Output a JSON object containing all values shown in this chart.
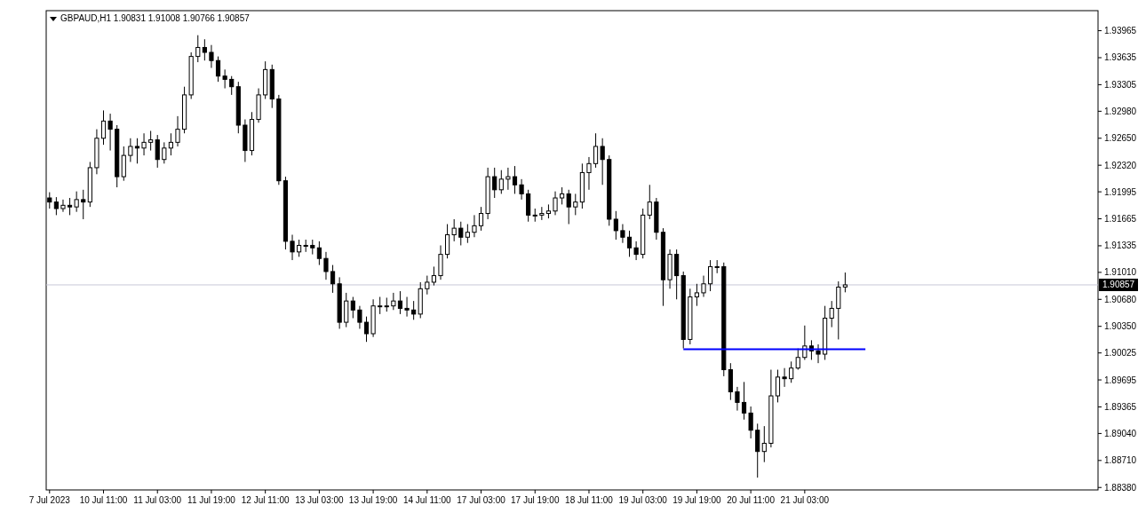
{
  "chart_data": {
    "type": "candlestick",
    "title": "GBPAUD,H1  1.90831 1.91008 1.90766 1.90857",
    "categories": [
      "7 Jul 2023",
      null,
      null,
      null,
      null,
      null,
      null,
      null,
      "10 Jul 11:00",
      null,
      null,
      null,
      null,
      null,
      null,
      null,
      "11 Jul 03:00",
      null,
      null,
      null,
      null,
      null,
      null,
      null,
      "11 Jul 19:00",
      null,
      null,
      null,
      null,
      null,
      null,
      null,
      "12 Jul 11:00",
      null,
      null,
      null,
      null,
      null,
      null,
      null,
      "13 Jul 03:00",
      null,
      null,
      null,
      null,
      null,
      null,
      null,
      "13 Jul 19:00",
      null,
      null,
      null,
      null,
      null,
      null,
      null,
      "14 Jul 11:00",
      null,
      null,
      null,
      null,
      null,
      null,
      null,
      "17 Jul 03:00",
      null,
      null,
      null,
      null,
      null,
      null,
      null,
      "17 Jul 19:00",
      null,
      null,
      null,
      null,
      null,
      null,
      null,
      "18 Jul 11:00",
      null,
      null,
      null,
      null,
      null,
      null,
      null,
      "19 Jul 03:00",
      null,
      null,
      null,
      null,
      null,
      null,
      null,
      "19 Jul 19:00",
      null,
      null,
      null,
      null,
      null,
      null,
      null,
      "20 Jul 11:00",
      null,
      null,
      null,
      null,
      null,
      null,
      null,
      "21 Jul 03:00",
      null,
      null,
      null,
      null,
      null,
      null,
      null,
      null,
      null,
      null,
      null,
      null,
      null,
      null,
      null,
      null,
      null,
      null,
      null,
      null,
      null,
      null,
      null,
      null,
      null,
      null,
      null,
      null,
      null,
      null,
      null,
      null,
      null,
      null,
      null,
      null,
      null,
      null,
      null,
      null,
      null,
      null,
      null
    ],
    "ohlc": [
      [
        1.9192,
        1.9199,
        1.9179,
        1.9187
      ],
      [
        1.9187,
        1.9193,
        1.9171,
        1.9179
      ],
      [
        1.9179,
        1.919,
        1.9175,
        1.9183
      ],
      [
        1.9183,
        1.9192,
        1.9171,
        1.9181
      ],
      [
        1.9181,
        1.92,
        1.9175,
        1.919
      ],
      [
        1.919,
        1.9202,
        1.9166,
        1.9187
      ],
      [
        1.9187,
        1.9236,
        1.9181,
        1.9229
      ],
      [
        1.9229,
        1.9276,
        1.9221,
        1.9265
      ],
      [
        1.9265,
        1.9299,
        1.9257,
        1.9286
      ],
      [
        1.9286,
        1.9295,
        1.925,
        1.9276
      ],
      [
        1.9276,
        1.9281,
        1.9205,
        1.9218
      ],
      [
        1.9218,
        1.9255,
        1.9213,
        1.9244
      ],
      [
        1.9244,
        1.9265,
        1.9236,
        1.9255
      ],
      [
        1.9255,
        1.9265,
        1.9234,
        1.9253
      ],
      [
        1.9253,
        1.9271,
        1.9244,
        1.926
      ],
      [
        1.926,
        1.9274,
        1.925,
        1.9263
      ],
      [
        1.9263,
        1.9269,
        1.9229,
        1.9239
      ],
      [
        1.9239,
        1.926,
        1.9234,
        1.9253
      ],
      [
        1.9253,
        1.9271,
        1.9244,
        1.926
      ],
      [
        1.926,
        1.9292,
        1.9255,
        1.9276
      ],
      [
        1.9276,
        1.9328,
        1.9271,
        1.9318
      ],
      [
        1.9318,
        1.937,
        1.9313,
        1.9365
      ],
      [
        1.9365,
        1.9391,
        1.9358,
        1.9376
      ],
      [
        1.9376,
        1.9386,
        1.936,
        1.937
      ],
      [
        1.937,
        1.9379,
        1.9351,
        1.936
      ],
      [
        1.936,
        1.9365,
        1.9334,
        1.9341
      ],
      [
        1.9341,
        1.9349,
        1.9326,
        1.9337
      ],
      [
        1.9337,
        1.9341,
        1.9318,
        1.9328
      ],
      [
        1.9328,
        1.9334,
        1.9271,
        1.9281
      ],
      [
        1.9281,
        1.9288,
        1.9236,
        1.925
      ],
      [
        1.925,
        1.9297,
        1.9244,
        1.9288
      ],
      [
        1.9288,
        1.9326,
        1.9284,
        1.9318
      ],
      [
        1.9318,
        1.9359,
        1.9313,
        1.9349
      ],
      [
        1.9349,
        1.9355,
        1.9302,
        1.9313
      ],
      [
        1.9313,
        1.9318,
        1.9208,
        1.9213
      ],
      [
        1.9213,
        1.9218,
        1.9129,
        1.9139
      ],
      [
        1.9139,
        1.9147,
        1.9116,
        1.9126
      ],
      [
        1.9126,
        1.9141,
        1.912,
        1.9134
      ],
      [
        1.9134,
        1.9141,
        1.9126,
        1.9134
      ],
      [
        1.9134,
        1.9141,
        1.9123,
        1.9131
      ],
      [
        1.9131,
        1.9139,
        1.911,
        1.9118
      ],
      [
        1.9118,
        1.9126,
        1.9092,
        1.9102
      ],
      [
        1.9102,
        1.911,
        1.9076,
        1.9087
      ],
      [
        1.9087,
        1.9095,
        1.9032,
        1.904
      ],
      [
        1.904,
        1.9076,
        1.9034,
        1.9066
      ],
      [
        1.9066,
        1.9071,
        1.9045,
        1.9055
      ],
      [
        1.9055,
        1.906,
        1.9032,
        1.904
      ],
      [
        1.904,
        1.9047,
        1.9016,
        1.9026
      ],
      [
        1.9026,
        1.9068,
        1.9022,
        1.906
      ],
      [
        1.906,
        1.9071,
        1.905,
        1.906
      ],
      [
        1.906,
        1.907,
        1.9053,
        1.906
      ],
      [
        1.906,
        1.9076,
        1.9055,
        1.9066
      ],
      [
        1.9066,
        1.9078,
        1.905,
        1.9057
      ],
      [
        1.9057,
        1.9071,
        1.9047,
        1.9055
      ],
      [
        1.9055,
        1.9066,
        1.9043,
        1.905
      ],
      [
        1.905,
        1.9089,
        1.9045,
        1.9081
      ],
      [
        1.9081,
        1.9097,
        1.9074,
        1.9089
      ],
      [
        1.9089,
        1.9108,
        1.9085,
        1.9097
      ],
      [
        1.9097,
        1.9134,
        1.9092,
        1.9123
      ],
      [
        1.9123,
        1.916,
        1.9118,
        1.9147
      ],
      [
        1.9147,
        1.9166,
        1.9139,
        1.9155
      ],
      [
        1.9155,
        1.9163,
        1.9134,
        1.9144
      ],
      [
        1.9144,
        1.916,
        1.9137,
        1.915
      ],
      [
        1.915,
        1.9171,
        1.9144,
        1.9158
      ],
      [
        1.9158,
        1.9181,
        1.9152,
        1.9173
      ],
      [
        1.9173,
        1.9229,
        1.9166,
        1.9218
      ],
      [
        1.9218,
        1.9229,
        1.9192,
        1.9202
      ],
      [
        1.9202,
        1.9226,
        1.9197,
        1.9215
      ],
      [
        1.9215,
        1.9229,
        1.9202,
        1.9218
      ],
      [
        1.9218,
        1.9231,
        1.9197,
        1.9208
      ],
      [
        1.9208,
        1.9215,
        1.919,
        1.9197
      ],
      [
        1.9197,
        1.9202,
        1.9163,
        1.9171
      ],
      [
        1.9171,
        1.9179,
        1.9163,
        1.9171
      ],
      [
        1.9171,
        1.9181,
        1.9165,
        1.9173
      ],
      [
        1.9173,
        1.9184,
        1.9167,
        1.9176
      ],
      [
        1.9176,
        1.92,
        1.9171,
        1.9192
      ],
      [
        1.9192,
        1.9205,
        1.9184,
        1.9197
      ],
      [
        1.9197,
        1.9202,
        1.916,
        1.9181
      ],
      [
        1.9181,
        1.9197,
        1.9171,
        1.9187
      ],
      [
        1.9187,
        1.9234,
        1.9179,
        1.9223
      ],
      [
        1.9223,
        1.9242,
        1.9202,
        1.9234
      ],
      [
        1.9234,
        1.9271,
        1.9229,
        1.9255
      ],
      [
        1.9255,
        1.9265,
        1.9208,
        1.9239
      ],
      [
        1.9239,
        1.9244,
        1.9158,
        1.9166
      ],
      [
        1.9166,
        1.9176,
        1.9141,
        1.9152
      ],
      [
        1.9152,
        1.916,
        1.9137,
        1.9144
      ],
      [
        1.9144,
        1.9152,
        1.912,
        1.9131
      ],
      [
        1.9131,
        1.9139,
        1.9116,
        1.9123
      ],
      [
        1.9123,
        1.9179,
        1.9118,
        1.9171
      ],
      [
        1.9171,
        1.9208,
        1.9166,
        1.9187
      ],
      [
        1.9187,
        1.9192,
        1.9141,
        1.915
      ],
      [
        1.915,
        1.9155,
        1.906,
        1.9092
      ],
      [
        1.9092,
        1.9129,
        1.9081,
        1.9123
      ],
      [
        1.9123,
        1.9129,
        1.9068,
        1.9097
      ],
      [
        1.9097,
        1.9102,
        1.9008,
        1.9019
      ],
      [
        1.9019,
        1.9081,
        1.9013,
        1.9071
      ],
      [
        1.9071,
        1.9087,
        1.906,
        1.9076
      ],
      [
        1.9076,
        1.9097,
        1.9071,
        1.9087
      ],
      [
        1.9087,
        1.9116,
        1.9078,
        1.9108
      ],
      [
        1.9108,
        1.9116,
        1.91,
        1.9108
      ],
      [
        1.9108,
        1.9113,
        1.8974,
        1.8982
      ],
      [
        1.8982,
        1.899,
        1.8945,
        1.8955
      ],
      [
        1.8955,
        1.8961,
        1.8932,
        1.8942
      ],
      [
        1.8942,
        1.8967,
        1.8921,
        1.8929
      ],
      [
        1.8929,
        1.8937,
        1.8898,
        1.8908
      ],
      [
        1.8908,
        1.8916,
        1.885,
        1.8882
      ],
      [
        1.8882,
        1.8913,
        1.8869,
        1.8892
      ],
      [
        1.8892,
        1.8982,
        1.8887,
        1.895
      ],
      [
        1.895,
        1.8982,
        1.8942,
        1.8973
      ],
      [
        1.8973,
        1.8984,
        1.8961,
        1.8971
      ],
      [
        1.8971,
        1.8992,
        1.8966,
        1.8984
      ],
      [
        1.8984,
        1.9008,
        1.8982,
        1.8997
      ],
      [
        1.8997,
        1.9036,
        1.8994,
        1.9011
      ],
      [
        1.9011,
        1.9018,
        1.8994,
        1.9005
      ],
      [
        1.9005,
        1.9013,
        1.899,
        1.9001
      ],
      [
        1.9001,
        1.906,
        1.8994,
        1.9045
      ],
      [
        1.9045,
        1.9066,
        1.9034,
        1.9057
      ],
      [
        1.9057,
        1.909,
        1.9019,
        1.9083
      ],
      [
        1.90831,
        1.91008,
        1.90766,
        1.90857
      ],
      null,
      null,
      null,
      null,
      null,
      null,
      null,
      null,
      null,
      null,
      null,
      null,
      null,
      null,
      null,
      null,
      null,
      null,
      null,
      null,
      null,
      null,
      null,
      null,
      null,
      null,
      null,
      null,
      null,
      null,
      null,
      null,
      null,
      null,
      null,
      null,
      null
    ],
    "series": [
      {
        "type": "line",
        "color": "#0000ff",
        "values": [
          null,
          null,
          null,
          null,
          null,
          null,
          null,
          null,
          null,
          null,
          null,
          null,
          null,
          null,
          null,
          null,
          null,
          null,
          null,
          null,
          null,
          null,
          null,
          null,
          null,
          null,
          null,
          null,
          null,
          null,
          null,
          null,
          null,
          null,
          null,
          null,
          null,
          null,
          null,
          null,
          null,
          null,
          null,
          null,
          null,
          null,
          null,
          null,
          null,
          null,
          null,
          null,
          null,
          null,
          null,
          null,
          null,
          null,
          null,
          null,
          null,
          null,
          null,
          null,
          null,
          null,
          null,
          null,
          null,
          null,
          null,
          null,
          null,
          null,
          null,
          null,
          null,
          null,
          null,
          null,
          null,
          null,
          null,
          null,
          null,
          null,
          null,
          null,
          null,
          null,
          null,
          null,
          null,
          null,
          1.9007,
          1.9007,
          1.9007,
          1.9007,
          1.9007,
          1.9007,
          1.9007,
          1.9007,
          1.9007,
          1.9007,
          1.9007,
          1.9007,
          1.9007,
          1.9007,
          1.9007,
          1.9007,
          1.9007,
          1.9007,
          1.9007,
          1.9007,
          1.9007,
          1.9007,
          1.9007,
          1.9007,
          1.9007,
          1.9007,
          1.9007,
          1.9007,
          null,
          null,
          null,
          null,
          null,
          null,
          null,
          null,
          null,
          null,
          null,
          null,
          null,
          null,
          null,
          null,
          null,
          null,
          null,
          null,
          null,
          null,
          null,
          null,
          null,
          null,
          null,
          null,
          null,
          null,
          null,
          null,
          null,
          null
        ]
      }
    ],
    "ylim": [
      1.8835,
      1.9421
    ],
    "yticks": [
      {
        "value": 1.8838,
        "label": "1.88380"
      },
      {
        "value": 1.8871,
        "label": "1.88710"
      },
      {
        "value": 1.8904,
        "label": "1.89040"
      },
      1.89365,
      1.89695,
      1.90025,
      {
        "value": 1.9035,
        "label": "1.90350"
      },
      {
        "value": 1.9068,
        "label": "1.90680"
      },
      {
        "value": 1.9101,
        "label": "1.91010"
      },
      1.91335,
      1.91665,
      1.91995,
      {
        "value": 1.9232,
        "label": "1.92320"
      },
      {
        "value": 1.9265,
        "label": "1.92650"
      },
      {
        "value": 1.9298,
        "label": "1.92980"
      },
      1.93305,
      1.93635,
      1.93965
    ],
    "ref_lines": [
      {
        "axis": "y",
        "value": 1.90857,
        "label": "1.90857",
        "color": "#c8c8d8"
      }
    ]
  }
}
